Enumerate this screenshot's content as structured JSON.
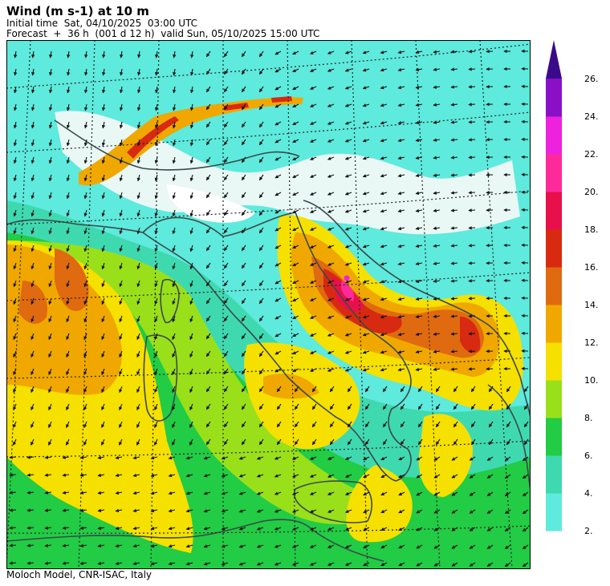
{
  "header": {
    "title": "Wind (m s-1) at 10 m",
    "initial_time": "Initial time  Sat, 04/10/2025  03:00 UTC",
    "forecast": "Forecast  +  36 h  (001 d 12 h)  valid Sun, 05/10/2025 15:00 UTC"
  },
  "footer": {
    "credit": "Moloch Model, CNR-ISAC, Italy"
  },
  "colors": {
    "land_low": "#e8f7f2",
    "coast": "#3a4a4a",
    "grid": "#222222",
    "arrow": "#111111"
  },
  "colorbar": {
    "units": "m s-1",
    "levels": [
      {
        "label": "2.",
        "color": "#5eeadd"
      },
      {
        "label": "4.",
        "color": "#3fd9b0"
      },
      {
        "label": "6.",
        "color": "#22cc44"
      },
      {
        "label": "8.",
        "color": "#99e01a"
      },
      {
        "label": "10.",
        "color": "#f5e000"
      },
      {
        "label": "12.",
        "color": "#f0a800"
      },
      {
        "label": "14.",
        "color": "#e06a10"
      },
      {
        "label": "16.",
        "color": "#d82a10"
      },
      {
        "label": "18.",
        "color": "#e8104a"
      },
      {
        "label": "20.",
        "color": "#ff2a9a"
      },
      {
        "label": "22.",
        "color": "#ee22dd"
      },
      {
        "label": "24.",
        "color": "#8a10c8"
      },
      {
        "label": "26.",
        "color": "#3a0a8a"
      }
    ]
  }
}
